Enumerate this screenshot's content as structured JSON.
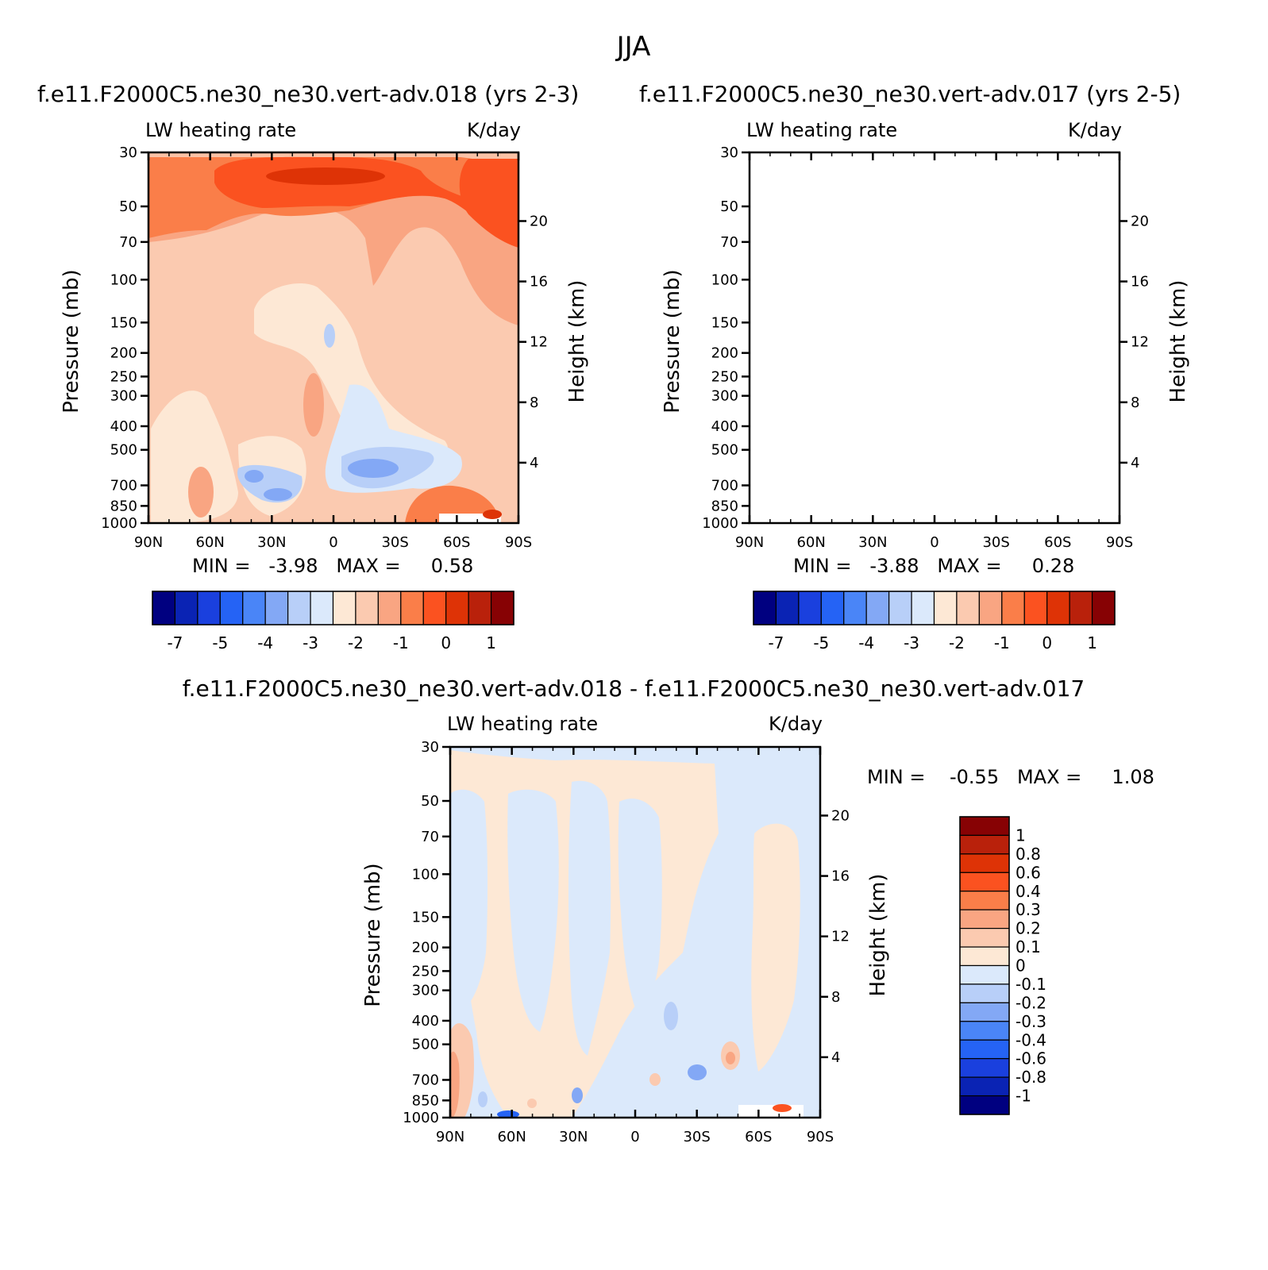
{
  "figure_title": "JJA",
  "chart_data": [
    {
      "type": "heatmap",
      "id": "panel1",
      "title": "f.e11.F2000C5.ne30_ne30.vert-adv.018 (yrs 2-3)",
      "left_label": "LW heating rate",
      "right_label": "K/day",
      "xlabel": "",
      "ylabel": "Pressure (mb)",
      "y2label": "Height (km)",
      "x_ticks": [
        "90N",
        "60N",
        "30N",
        "0",
        "30S",
        "60S",
        "90S"
      ],
      "y_ticks": [
        "30",
        "50",
        "70",
        "100",
        "150",
        "200",
        "250",
        "300",
        "400",
        "500",
        "700",
        "850",
        "1000"
      ],
      "y2_ticks": [
        "20",
        "16",
        "12",
        "8",
        "4"
      ],
      "xlim": [
        -90,
        90
      ],
      "ylim": [
        1000,
        30
      ],
      "min_max_text": "MIN =   -3.98   MAX =     0.58",
      "colorbar": {
        "orientation": "horizontal",
        "levels": [
          "-7",
          "-5",
          "-4",
          "-3",
          "-2",
          "-1",
          "0",
          "1"
        ]
      }
    },
    {
      "type": "heatmap",
      "id": "panel2",
      "title": "f.e11.F2000C5.ne30_ne30.vert-adv.017 (yrs 2-5)",
      "left_label": "LW heating rate",
      "right_label": "K/day",
      "xlabel": "",
      "ylabel": "Pressure (mb)",
      "y2label": "Height (km)",
      "x_ticks": [
        "90N",
        "60N",
        "30N",
        "0",
        "30S",
        "60S",
        "90S"
      ],
      "y_ticks": [
        "30",
        "50",
        "70",
        "100",
        "150",
        "200",
        "250",
        "300",
        "400",
        "500",
        "700",
        "850",
        "1000"
      ],
      "y2_ticks": [
        "20",
        "16",
        "12",
        "8",
        "4"
      ],
      "xlim": [
        -90,
        90
      ],
      "ylim": [
        1000,
        30
      ],
      "min_max_text": "MIN =   -3.88   MAX =     0.28",
      "colorbar": {
        "orientation": "horizontal",
        "levels": [
          "-7",
          "-5",
          "-4",
          "-3",
          "-2",
          "-1",
          "0",
          "1"
        ]
      }
    },
    {
      "type": "heatmap",
      "id": "panel3",
      "title": "f.e11.F2000C5.ne30_ne30.vert-adv.018 - f.e11.F2000C5.ne30_ne30.vert-adv.017",
      "left_label": "LW heating rate",
      "right_label": "K/day",
      "xlabel": "",
      "ylabel": "Pressure (mb)",
      "y2label": "Height (km)",
      "x_ticks": [
        "90N",
        "60N",
        "30N",
        "0",
        "30S",
        "60S",
        "90S"
      ],
      "y_ticks": [
        "30",
        "50",
        "70",
        "100",
        "150",
        "200",
        "250",
        "300",
        "400",
        "500",
        "700",
        "850",
        "1000"
      ],
      "y2_ticks": [
        "20",
        "16",
        "12",
        "8",
        "4"
      ],
      "xlim": [
        -90,
        90
      ],
      "ylim": [
        1000,
        30
      ],
      "min_max_text": "MIN =    -0.55   MAX =     1.08",
      "colorbar": {
        "orientation": "vertical",
        "levels": [
          "1",
          "0.8",
          "0.6",
          "0.4",
          "0.3",
          "0.2",
          "0.1",
          "0",
          "-0.1",
          "-0.2",
          "-0.3",
          "-0.4",
          "-0.6",
          "-0.8",
          "-1"
        ]
      }
    }
  ],
  "colorbar_colors": [
    "#000080",
    "#0a23b4",
    "#1a40de",
    "#2563f5",
    "#4a85f7",
    "#83a8f5",
    "#b8cff8",
    "#dbe9fb",
    "#fde8d5",
    "#fbcab0",
    "#f9a582",
    "#fa7e49",
    "#fb5220",
    "#de3306",
    "#b9210b",
    "#870204"
  ]
}
